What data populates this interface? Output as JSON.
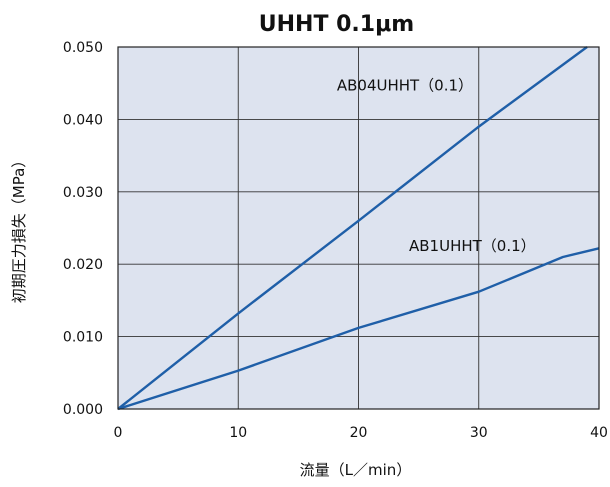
{
  "chart_data": {
    "type": "line",
    "title": "UHHT 0.1μm",
    "xlabel": "流量（L／min）",
    "ylabel": "初期圧力損失（MPa）",
    "xlim": [
      0,
      40
    ],
    "ylim": [
      0,
      0.05
    ],
    "xticks": [
      0,
      10,
      20,
      30,
      40
    ],
    "xtick_labels": [
      "0",
      "10",
      "20",
      "30",
      "40"
    ],
    "yticks": [
      0,
      0.01,
      0.02,
      0.03,
      0.04,
      0.05
    ],
    "ytick_labels": [
      "0.000",
      "0.010",
      "0.020",
      "0.030",
      "0.040",
      "0.050"
    ],
    "grid": true,
    "plot_background": "#dde3ef",
    "series": [
      {
        "name": "AB04UHHT（0.1）",
        "color": "#1f5fa8",
        "x": [
          0,
          10,
          20,
          30,
          39
        ],
        "y": [
          0,
          0.0132,
          0.026,
          0.039,
          0.05
        ]
      },
      {
        "name": "AB1UHHT（0.1）",
        "color": "#1f5fa8",
        "x": [
          0,
          10,
          20,
          30,
          37,
          40
        ],
        "y": [
          0,
          0.0053,
          0.0112,
          0.0162,
          0.021,
          0.0222
        ]
      }
    ]
  }
}
